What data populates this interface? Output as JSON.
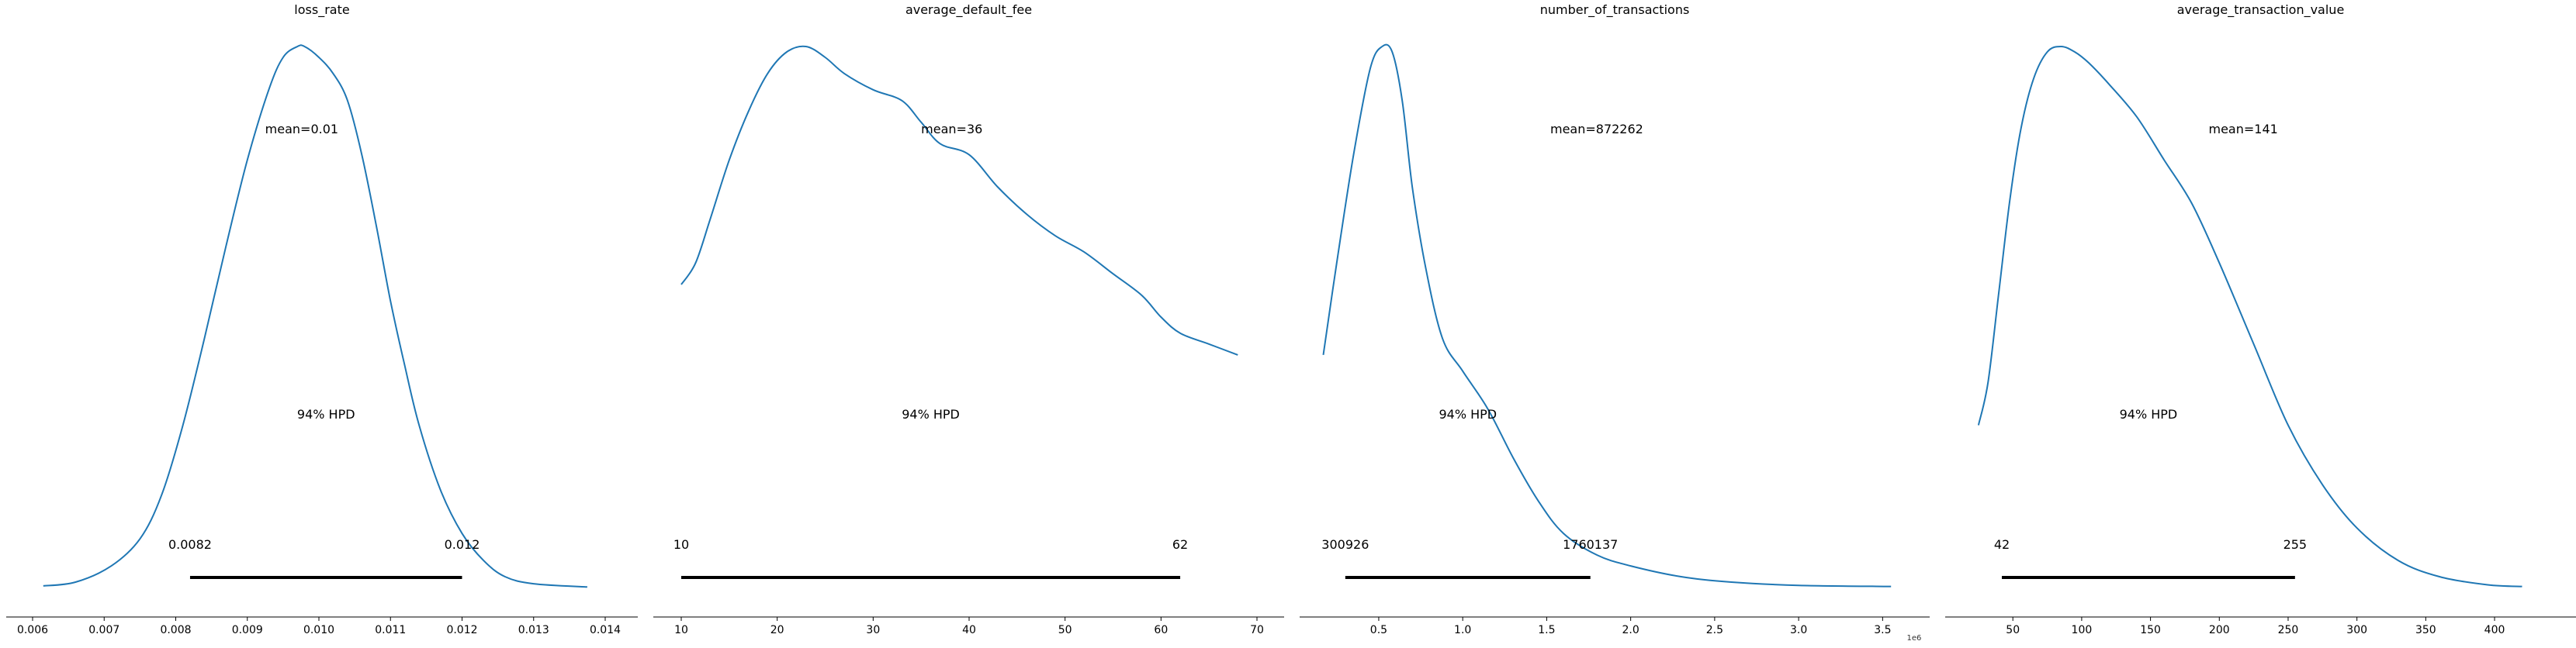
{
  "chart_data": [
    {
      "type": "area",
      "title": "loss_rate",
      "mean_text": "mean=0.01",
      "hpd_text": "94% HPD",
      "hpd_low_text": "0.0082",
      "hpd_high_text": "0.012",
      "hpd": [
        0.0082,
        0.012
      ],
      "xlim": [
        0.006,
        0.014
      ],
      "xticks": [
        0.006,
        0.007,
        0.008,
        0.009,
        0.01,
        0.011,
        0.012,
        0.013,
        0.014
      ],
      "xtick_labels": [
        "0.006",
        "0.007",
        "0.008",
        "0.009",
        "0.010",
        "0.011",
        "0.012",
        "0.013",
        "0.014"
      ],
      "offset_text": "",
      "density_x": [
        0.00615,
        0.0066,
        0.0071,
        0.0075,
        0.0078,
        0.0081,
        0.0084,
        0.0087,
        0.009,
        0.0093,
        0.0095,
        0.0097,
        0.0098,
        0.01,
        0.0102,
        0.0104,
        0.0106,
        0.0108,
        0.011,
        0.0112,
        0.0114,
        0.0117,
        0.012,
        0.0123,
        0.0126,
        0.013,
        0.01375
      ],
      "density_y": [
        0.003,
        0.01,
        0.04,
        0.09,
        0.17,
        0.3,
        0.46,
        0.63,
        0.79,
        0.92,
        0.98,
        1.0,
        1.0,
        0.98,
        0.95,
        0.9,
        0.8,
        0.67,
        0.53,
        0.41,
        0.3,
        0.18,
        0.1,
        0.05,
        0.02,
        0.007,
        0.001
      ],
      "color": "#1f77b4"
    },
    {
      "type": "area",
      "title": "average_default_fee",
      "mean_text": "mean=36",
      "hpd_text": "94% HPD",
      "hpd_low_text": "10",
      "hpd_high_text": "62",
      "hpd": [
        10,
        62
      ],
      "xlim": [
        10,
        70
      ],
      "xticks": [
        10,
        20,
        30,
        40,
        50,
        60,
        70
      ],
      "xtick_labels": [
        "10",
        "20",
        "30",
        "40",
        "50",
        "60",
        "70"
      ],
      "offset_text": "",
      "density_x": [
        10,
        11.5,
        13,
        15,
        17,
        19,
        21,
        23,
        25,
        27,
        30,
        33,
        35,
        37,
        40,
        43,
        46,
        49,
        52,
        55,
        58,
        60,
        62,
        65,
        68
      ],
      "density_y": [
        0.56,
        0.6,
        0.68,
        0.79,
        0.88,
        0.95,
        0.99,
        1.0,
        0.98,
        0.95,
        0.92,
        0.9,
        0.86,
        0.82,
        0.8,
        0.74,
        0.69,
        0.65,
        0.62,
        0.58,
        0.54,
        0.5,
        0.47,
        0.45,
        0.43
      ],
      "color": "#1f77b4"
    },
    {
      "type": "area",
      "title": "number_of_transactions",
      "mean_text": "mean=872262",
      "hpd_text": "94% HPD",
      "hpd_low_text": "300926",
      "hpd_high_text": "1760137",
      "hpd": [
        300926,
        1760137
      ],
      "xlim": [
        200000,
        3600000
      ],
      "xticks": [
        500000,
        1000000,
        1500000,
        2000000,
        2500000,
        3000000,
        3500000
      ],
      "xtick_labels": [
        "0.5",
        "1.0",
        "1.5",
        "2.0",
        "2.5",
        "3.0",
        "3.5"
      ],
      "offset_text": "1e6",
      "density_x": [
        170000,
        250000,
        350000,
        450000,
        520000,
        580000,
        640000,
        700000,
        780000,
        880000,
        1000000,
        1150000,
        1300000,
        1450000,
        1600000,
        1800000,
        2000000,
        2300000,
        2600000,
        3000000,
        3550000
      ],
      "density_y": [
        0.43,
        0.6,
        0.8,
        0.96,
        1.0,
        0.99,
        0.9,
        0.74,
        0.59,
        0.46,
        0.4,
        0.33,
        0.24,
        0.16,
        0.1,
        0.06,
        0.04,
        0.02,
        0.01,
        0.004,
        0.002
      ],
      "color": "#1f77b4"
    },
    {
      "type": "area",
      "title": "average_transaction_value",
      "mean_text": "mean=141",
      "hpd_text": "94% HPD",
      "hpd_low_text": "42",
      "hpd_high_text": "255",
      "hpd": [
        42,
        255
      ],
      "xlim": [
        20,
        440
      ],
      "xticks": [
        50,
        100,
        150,
        200,
        250,
        300,
        350,
        400
      ],
      "xtick_labels": [
        "50",
        "100",
        "150",
        "200",
        "250",
        "300",
        "350",
        "400"
      ],
      "offset_text": "",
      "density_x": [
        25,
        32,
        40,
        48,
        56,
        65,
        75,
        85,
        95,
        105,
        120,
        140,
        160,
        180,
        200,
        225,
        250,
        275,
        300,
        330,
        360,
        395,
        420
      ],
      "density_y": [
        0.3,
        0.38,
        0.55,
        0.72,
        0.85,
        0.94,
        0.99,
        1.0,
        0.99,
        0.97,
        0.93,
        0.87,
        0.79,
        0.71,
        0.6,
        0.45,
        0.3,
        0.19,
        0.11,
        0.05,
        0.02,
        0.005,
        0.002
      ],
      "color": "#1f77b4"
    }
  ]
}
